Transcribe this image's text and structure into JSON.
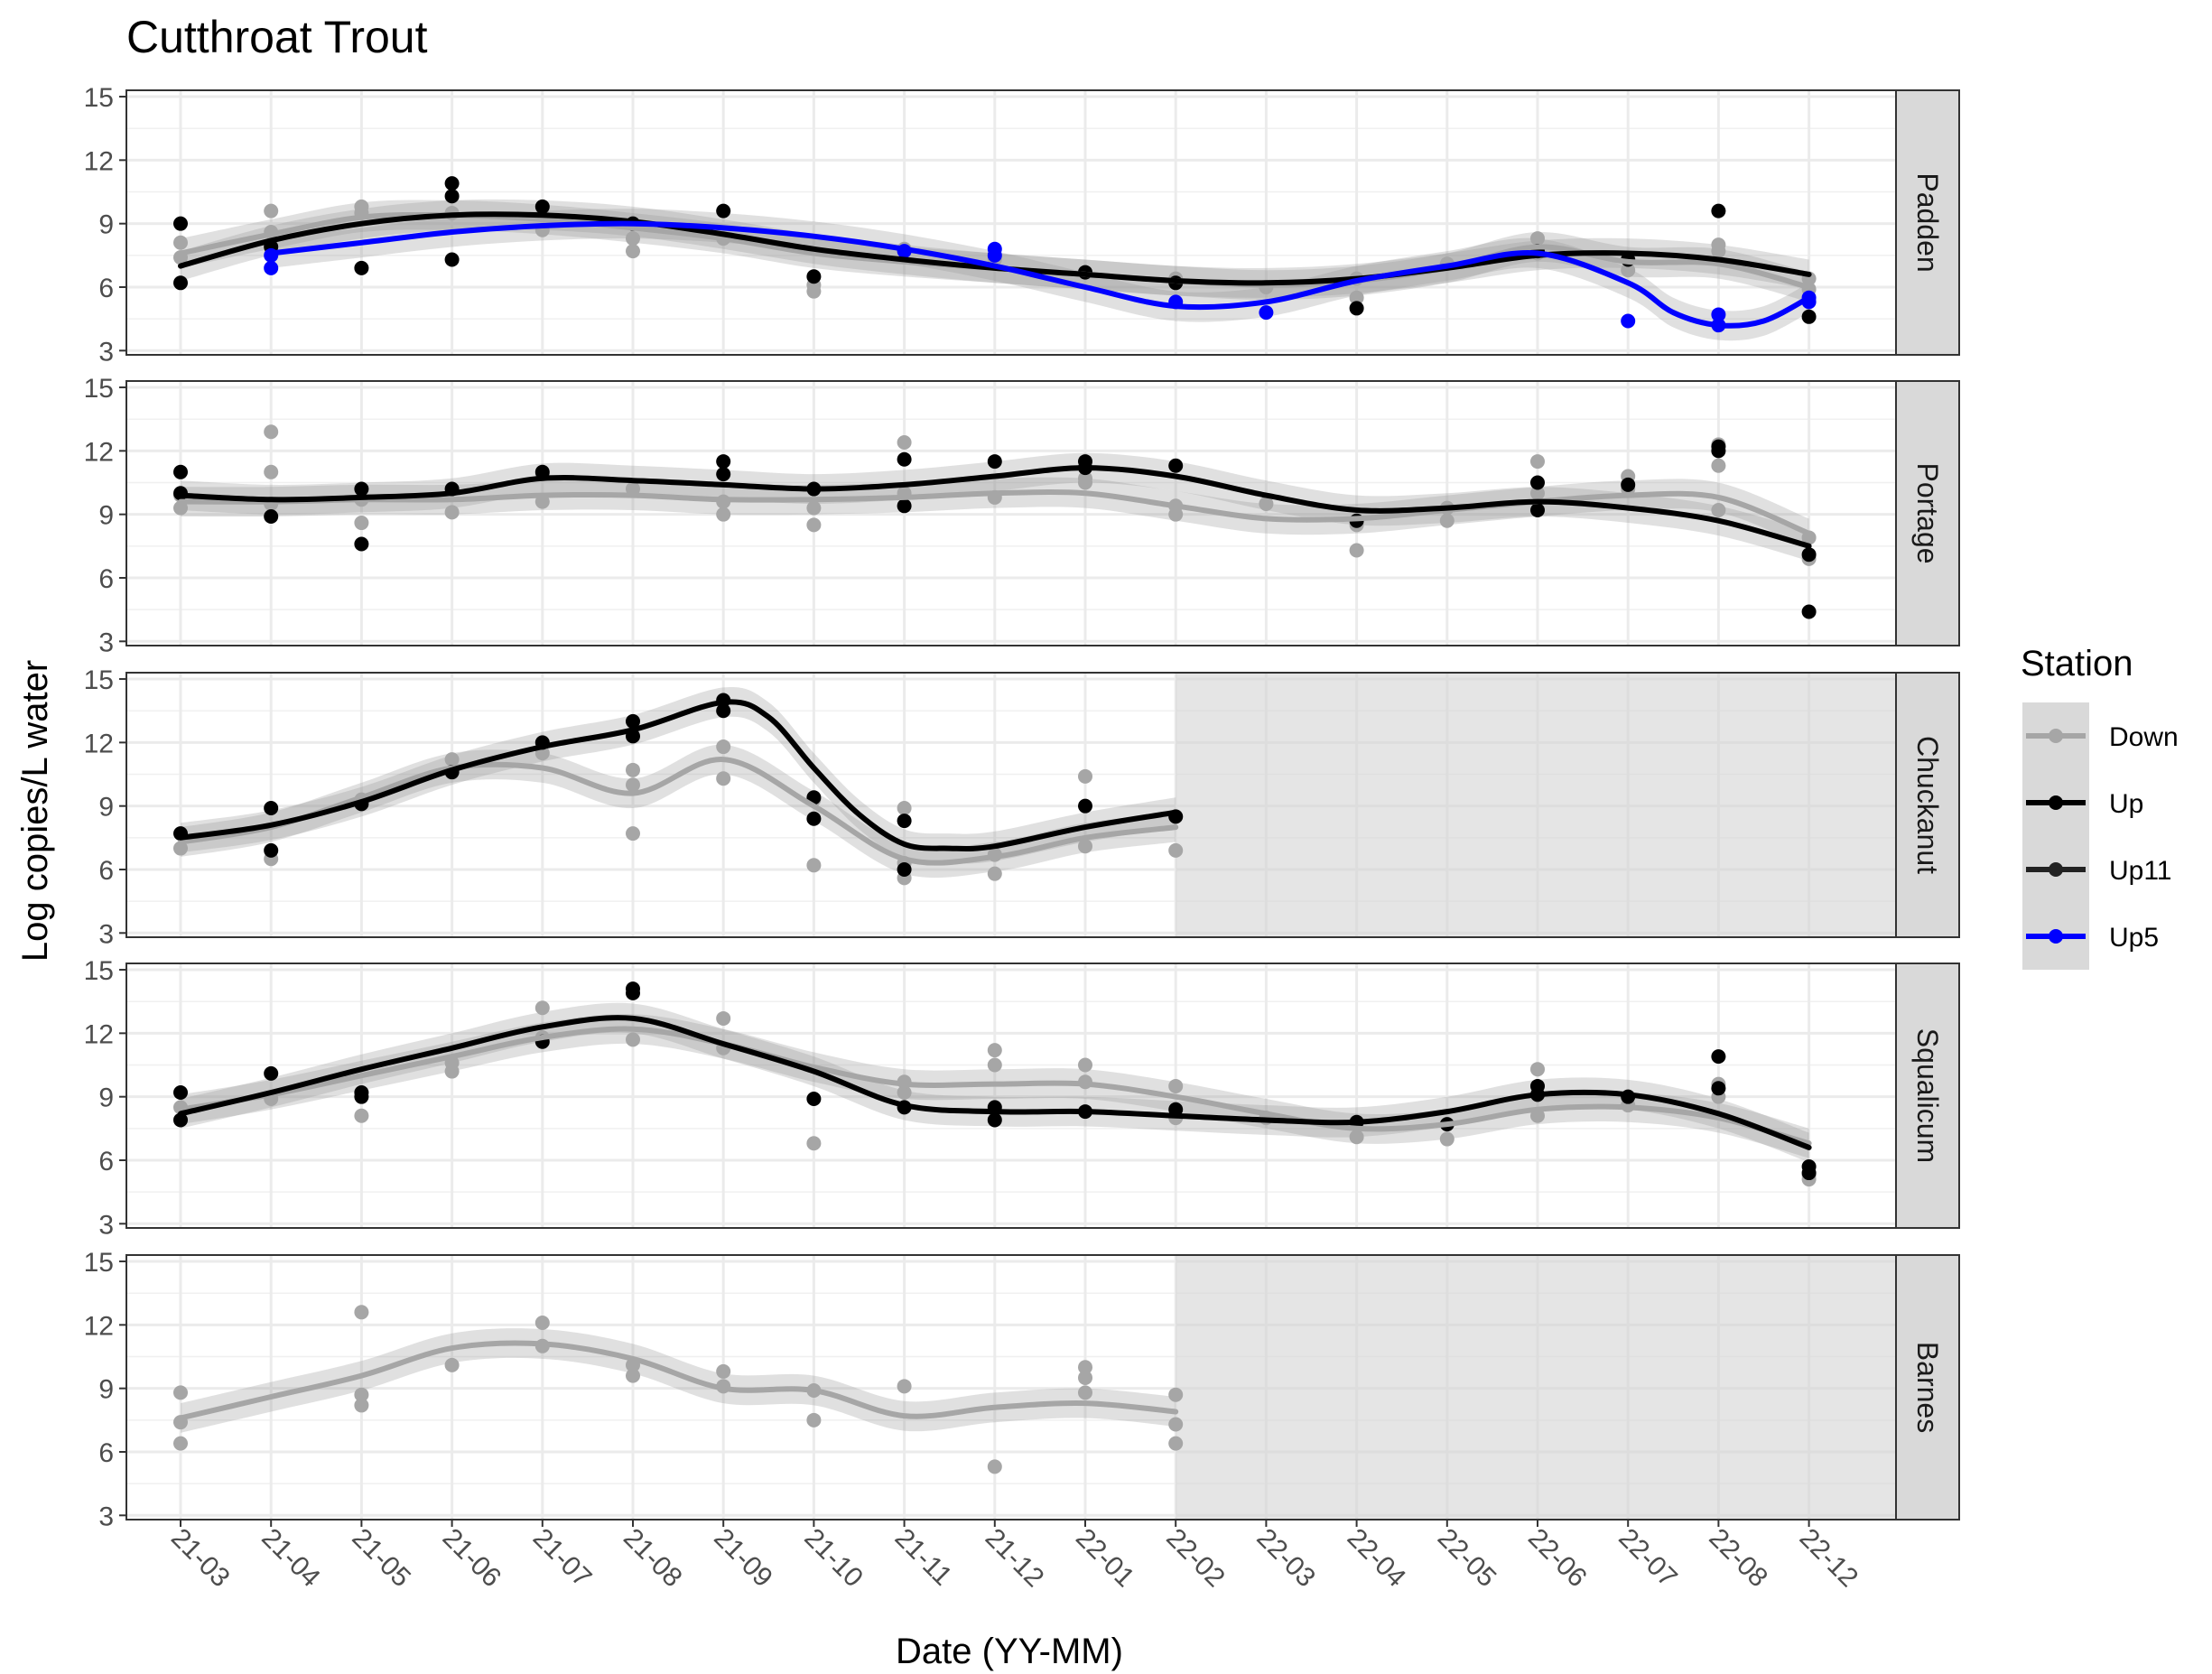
{
  "chart_data": {
    "type": "line",
    "title": "Cutthroat Trout",
    "xlabel": "Date (YY-MM)",
    "ylabel": "Log copies/L water",
    "categories": [
      "21-03",
      "21-04",
      "21-05",
      "21-06",
      "21-07",
      "21-08",
      "21-09",
      "21-10",
      "21-11",
      "21-12",
      "22-01",
      "22-02",
      "22-03",
      "22-04",
      "22-05",
      "22-06",
      "22-07",
      "22-08",
      "22-12"
    ],
    "ylim": [
      2.8,
      15.3
    ],
    "yticks": [
      3,
      6,
      9,
      12,
      15
    ],
    "grid": true,
    "legend": {
      "title": "Station",
      "placement": "right",
      "items": [
        {
          "name": "Down",
          "color": "#a6a6a6"
        },
        {
          "name": "Up",
          "color": "#000000"
        },
        {
          "name": "Up11",
          "color": "#222222"
        },
        {
          "name": "Up5",
          "color": "#0000ff"
        }
      ]
    },
    "panels": [
      {
        "name": "Padden",
        "shaded_from": null,
        "series": [
          {
            "name": "Down",
            "color": "#a6a6a6",
            "x": [
              0,
              1,
              2,
              3,
              4,
              5,
              6,
              7,
              8,
              9,
              10,
              11,
              12,
              13,
              14,
              15,
              16,
              17,
              18
            ],
            "values": [
              7.6,
              8.5,
              9.3,
              9.4,
              9.2,
              8.8,
              8.3,
              7.6,
              7.2,
              6.9,
              6.6,
              6.3,
              6.1,
              6.3,
              6.9,
              7.9,
              7.2,
              7.1,
              6.0
            ]
          },
          {
            "name": "Up",
            "color": "#000000",
            "x": [
              0,
              1,
              2,
              3,
              4,
              5,
              6,
              7,
              8,
              9,
              10,
              11,
              12,
              13,
              14,
              15,
              16,
              17,
              18
            ],
            "values": [
              7.0,
              8.2,
              9.0,
              9.4,
              9.4,
              9.1,
              8.5,
              7.8,
              7.3,
              6.9,
              6.6,
              6.3,
              6.2,
              6.4,
              6.9,
              7.5,
              7.6,
              7.3,
              6.6
            ]
          },
          {
            "name": "Up5",
            "color": "#0000ff",
            "x": [
              1,
              2,
              3,
              4,
              5,
              6,
              7,
              8,
              9,
              10,
              11,
              12,
              13,
              14,
              15,
              16,
              16.5,
              17,
              17.5,
              18
            ],
            "values": [
              7.6,
              8.1,
              8.6,
              8.9,
              9.0,
              8.8,
              8.4,
              7.8,
              7.0,
              6.0,
              5.1,
              5.3,
              6.3,
              7.0,
              7.6,
              6.2,
              4.8,
              4.2,
              4.4,
              5.5
            ]
          }
        ],
        "points": [
          {
            "series": "Down",
            "x": [
              0,
              0,
              1,
              1,
              2,
              2,
              3,
              4,
              4,
              5,
              5,
              6,
              7,
              7,
              8,
              9,
              10,
              11,
              12,
              13,
              13,
              14,
              15,
              15,
              16,
              17,
              17,
              18,
              18
            ],
            "values": [
              7.4,
              8.1,
              8.6,
              9.6,
              9.5,
              9.8,
              9.5,
              9.4,
              8.7,
              8.3,
              7.7,
              8.3,
              6.1,
              5.8,
              7.8,
              7.3,
              6.7,
              6.4,
              6.0,
              6.4,
              5.5,
              7.1,
              8.3,
              7.6,
              6.8,
              8.0,
              7.7,
              6.4,
              5.9
            ]
          },
          {
            "series": "Up",
            "x": [
              0,
              0,
              1,
              2,
              3,
              3,
              3,
              4,
              5,
              6,
              7,
              10,
              11,
              13,
              15,
              16,
              17,
              18
            ],
            "values": [
              9.0,
              6.2,
              7.9,
              6.9,
              10.9,
              10.3,
              7.3,
              9.8,
              9.0,
              9.6,
              6.5,
              6.7,
              6.2,
              5.0,
              7.7,
              7.3,
              9.6,
              4.6
            ]
          },
          {
            "series": "Up5",
            "x": [
              1,
              1,
              8,
              9,
              9,
              11,
              12,
              16,
              17,
              17,
              18,
              18
            ],
            "values": [
              7.5,
              6.9,
              7.7,
              7.8,
              7.5,
              5.3,
              4.8,
              4.4,
              4.7,
              4.2,
              5.5,
              5.3
            ]
          }
        ]
      },
      {
        "name": "Portage",
        "shaded_from": null,
        "series": [
          {
            "name": "Down",
            "color": "#a6a6a6",
            "x": [
              0,
              1,
              2,
              3,
              4,
              5,
              6,
              7,
              8,
              9,
              10,
              11,
              12,
              13,
              14,
              15,
              16,
              17,
              18
            ],
            "values": [
              9.6,
              9.6,
              9.7,
              9.7,
              9.9,
              9.9,
              9.7,
              9.7,
              9.8,
              10.0,
              10.0,
              9.4,
              8.8,
              8.8,
              9.2,
              9.6,
              9.9,
              9.8,
              8.1
            ]
          },
          {
            "name": "Up",
            "color": "#000000",
            "x": [
              0,
              1,
              2,
              3,
              4,
              5,
              6,
              7,
              8,
              9,
              10,
              11,
              12,
              13,
              14,
              15,
              16,
              17,
              18
            ],
            "values": [
              9.9,
              9.7,
              9.8,
              10.0,
              10.7,
              10.6,
              10.4,
              10.2,
              10.4,
              10.8,
              11.2,
              10.8,
              9.9,
              9.2,
              9.3,
              9.6,
              9.3,
              8.7,
              7.5
            ]
          }
        ],
        "points": [
          {
            "series": "Down",
            "x": [
              0,
              0,
              1,
              1,
              1,
              2,
              2,
              3,
              4,
              4,
              5,
              6,
              6,
              7,
              7,
              8,
              8,
              9,
              10,
              10,
              11,
              11,
              12,
              13,
              13,
              14,
              14,
              15,
              15,
              16,
              16,
              17,
              17,
              17,
              18,
              18
            ],
            "values": [
              9.3,
              9.9,
              12.9,
              11.0,
              9.5,
              8.6,
              9.7,
              9.1,
              10.9,
              9.6,
              10.2,
              9.0,
              9.6,
              8.5,
              9.3,
              12.4,
              10.0,
              9.8,
              10.5,
              10.7,
              9.0,
              9.4,
              9.5,
              7.3,
              8.5,
              8.7,
              9.3,
              11.5,
              10.0,
              10.8,
              10.2,
              12.3,
              11.3,
              9.2,
              7.9,
              6.9
            ]
          },
          {
            "series": "Up",
            "x": [
              0,
              0,
              1,
              2,
              2,
              3,
              4,
              6,
              6,
              7,
              8,
              8,
              9,
              10,
              10,
              11,
              13,
              15,
              15,
              16,
              17,
              17,
              18,
              18
            ],
            "values": [
              11.0,
              10.0,
              8.9,
              7.6,
              10.2,
              10.2,
              11.0,
              11.5,
              10.9,
              10.2,
              11.6,
              9.4,
              11.5,
              11.5,
              11.2,
              11.3,
              8.7,
              10.5,
              9.2,
              10.4,
              12.0,
              12.2,
              7.1,
              4.4
            ]
          }
        ]
      },
      {
        "name": "Chuckanut",
        "shaded_from": 11,
        "series": [
          {
            "name": "Down",
            "color": "#a6a6a6",
            "x": [
              0,
              1,
              2,
              3,
              4,
              5,
              6,
              7,
              8,
              9,
              10,
              11
            ],
            "values": [
              7.3,
              8.0,
              9.4,
              10.8,
              10.8,
              9.6,
              11.2,
              9.0,
              6.5,
              6.6,
              7.5,
              8.0
            ]
          },
          {
            "name": "Up",
            "color": "#000000",
            "x": [
              0,
              1,
              2,
              3,
              4,
              5,
              6,
              6.5,
              7,
              7.5,
              8,
              8.5,
              9,
              10,
              11
            ],
            "values": [
              7.5,
              8.1,
              9.2,
              10.7,
              11.8,
              12.6,
              13.9,
              13.2,
              10.8,
              8.6,
              7.2,
              7.0,
              7.1,
              8.0,
              8.7
            ]
          }
        ],
        "points": [
          {
            "series": "Down",
            "x": [
              0,
              1,
              2,
              3,
              4,
              5,
              5,
              5,
              6,
              6,
              7,
              7,
              8,
              8,
              8,
              9,
              9,
              10,
              10,
              11,
              11
            ],
            "values": [
              7.0,
              6.5,
              9.3,
              11.2,
              11.5,
              10.7,
              10.0,
              7.7,
              11.8,
              10.3,
              9.3,
              6.2,
              8.9,
              6.3,
              5.6,
              6.7,
              5.8,
              10.4,
              7.1,
              8.5,
              6.9
            ]
          },
          {
            "series": "Up",
            "x": [
              0,
              1,
              1,
              2,
              3,
              4,
              5,
              5,
              6,
              6,
              7,
              7,
              8,
              8,
              10,
              11
            ],
            "values": [
              7.7,
              8.9,
              6.9,
              9.1,
              10.6,
              12.0,
              13.0,
              12.3,
              14.0,
              13.5,
              9.4,
              8.4,
              8.3,
              6.0,
              9.0,
              8.5
            ]
          }
        ]
      },
      {
        "name": "Squalicum",
        "shaded_from": null,
        "series": [
          {
            "name": "Down",
            "color": "#a6a6a6",
            "x": [
              0,
              1,
              2,
              3,
              4,
              5,
              6,
              7,
              8,
              9,
              10,
              11,
              12,
              13,
              14,
              15,
              16,
              17,
              18
            ],
            "values": [
              8.4,
              9.1,
              10.0,
              10.9,
              11.8,
              12.2,
              11.5,
              10.4,
              9.6,
              9.6,
              9.6,
              9.0,
              8.2,
              7.5,
              7.7,
              8.4,
              8.5,
              8.0,
              6.8
            ]
          },
          {
            "name": "Up",
            "color": "#000000",
            "x": [
              0,
              1,
              2,
              3,
              4,
              5,
              6,
              7,
              8,
              9,
              10,
              11,
              12,
              13,
              14,
              15,
              16,
              17,
              18
            ],
            "values": [
              8.2,
              9.2,
              10.3,
              11.3,
              12.3,
              12.7,
              11.5,
              10.2,
              8.6,
              8.3,
              8.3,
              8.1,
              7.9,
              7.8,
              8.3,
              9.1,
              9.1,
              8.2,
              6.6
            ]
          }
        ],
        "points": [
          {
            "series": "Down",
            "x": [
              0,
              1,
              2,
              3,
              3,
              4,
              4,
              5,
              6,
              6,
              7,
              8,
              8,
              9,
              9,
              10,
              10,
              11,
              11,
              12,
              13,
              14,
              15,
              15,
              16,
              17,
              17,
              18,
              18
            ],
            "values": [
              8.5,
              8.9,
              8.1,
              10.2,
              10.6,
              13.2,
              11.8,
              11.7,
              12.7,
              11.3,
              6.8,
              9.2,
              9.7,
              11.2,
              10.5,
              10.5,
              9.7,
              9.5,
              8.0,
              8.0,
              7.1,
              7.0,
              10.3,
              8.1,
              8.6,
              9.0,
              9.6,
              5.1,
              5.3
            ]
          },
          {
            "series": "Up",
            "x": [
              0,
              0,
              1,
              2,
              2,
              4,
              5,
              5,
              7,
              8,
              9,
              9,
              10,
              11,
              13,
              14,
              15,
              15,
              16,
              17,
              17,
              18,
              18
            ],
            "values": [
              9.2,
              7.9,
              10.1,
              9.2,
              9.0,
              11.6,
              14.1,
              13.9,
              8.9,
              8.5,
              8.5,
              7.9,
              8.3,
              8.4,
              7.8,
              7.7,
              9.5,
              9.1,
              9.0,
              10.9,
              9.4,
              5.7,
              5.4
            ]
          }
        ]
      },
      {
        "name": "Barnes",
        "shaded_from": 11,
        "series": [
          {
            "name": "Down",
            "color": "#a6a6a6",
            "x": [
              0,
              1,
              2,
              3,
              4,
              5,
              6,
              7,
              8,
              9,
              10,
              11
            ],
            "values": [
              7.6,
              8.6,
              9.6,
              10.9,
              11.1,
              10.4,
              9.0,
              8.9,
              7.7,
              8.1,
              8.3,
              7.9
            ]
          }
        ],
        "points": [
          {
            "series": "Down",
            "x": [
              0,
              0,
              0,
              2,
              2,
              2,
              3,
              4,
              4,
              5,
              5,
              6,
              6,
              7,
              7,
              8,
              9,
              10,
              10,
              10,
              11,
              11,
              11
            ],
            "values": [
              8.8,
              7.4,
              6.4,
              12.6,
              8.7,
              8.2,
              10.1,
              12.1,
              11.0,
              10.1,
              9.6,
              9.8,
              9.1,
              8.9,
              7.5,
              9.1,
              5.3,
              10.0,
              9.5,
              8.8,
              8.7,
              7.3,
              6.4
            ]
          }
        ]
      }
    ]
  }
}
